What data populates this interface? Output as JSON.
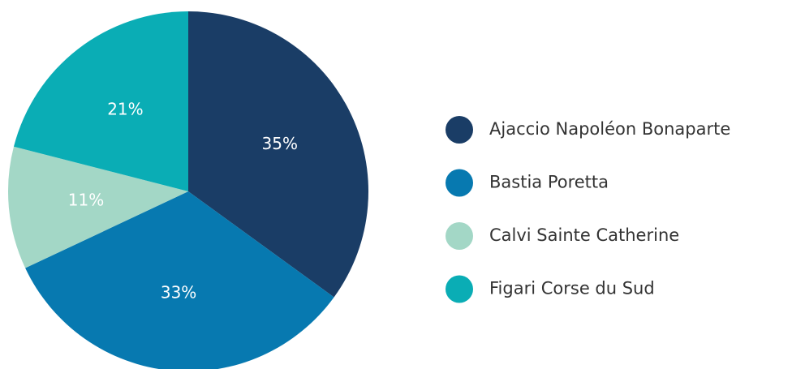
{
  "chart_data": {
    "type": "pie",
    "categories": [
      "Ajaccio Napoléon Bonaparte",
      "Bastia Poretta",
      "Calvi Sainte Catherine",
      "Figari Corse du Sud"
    ],
    "values": [
      35,
      33,
      11,
      21
    ],
    "value_labels": [
      "35%",
      "33%",
      "11%",
      "21%"
    ],
    "colors": [
      "#1a3d66",
      "#0779b0",
      "#a3d7c6",
      "#0aadb5"
    ],
    "legend": "right"
  }
}
